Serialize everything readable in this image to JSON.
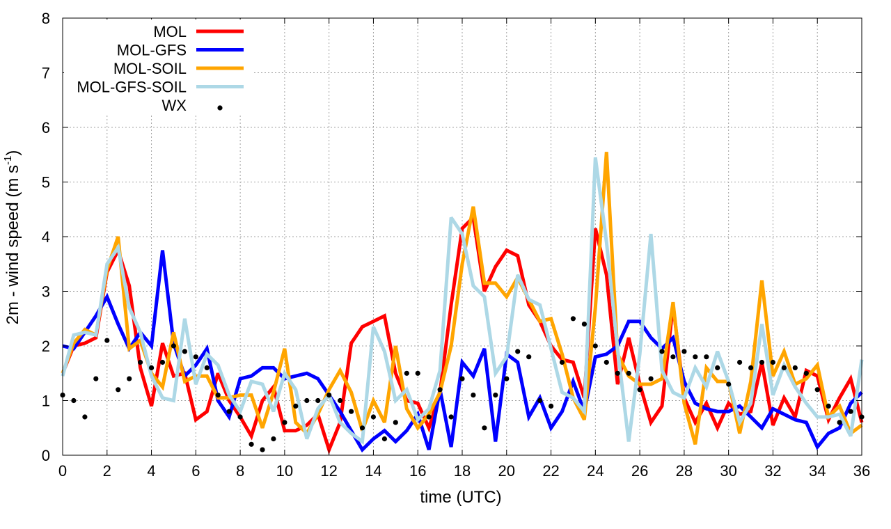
{
  "chart_data": {
    "type": "line",
    "title": "",
    "xlabel": "time (UTC)",
    "ylabel_main": "2m - wind speed  (m s",
    "ylabel_sup": "-1",
    "ylabel_close": ")",
    "xlim": [
      0,
      36
    ],
    "ylim": [
      0,
      8
    ],
    "grid": true,
    "legend_position": "top-left",
    "xticks": [
      "0",
      "2",
      "4",
      "6",
      "8",
      "10",
      "12",
      "14",
      "16",
      "18",
      "20",
      "22",
      "24",
      "26",
      "28",
      "30",
      "32",
      "34",
      "36"
    ],
    "yticks": [
      "0",
      "1",
      "2",
      "3",
      "4",
      "5",
      "6",
      "7",
      "8"
    ],
    "x": [
      0,
      0.5,
      1,
      1.5,
      2,
      2.5,
      3,
      3.5,
      4,
      4.5,
      5,
      5.5,
      6,
      6.5,
      7,
      7.5,
      8,
      8.5,
      9,
      9.5,
      10,
      10.5,
      11,
      11.5,
      12,
      12.5,
      13,
      13.5,
      14,
      14.5,
      15,
      15.5,
      16,
      16.5,
      17,
      17.5,
      18,
      18.5,
      19,
      19.5,
      20,
      20.5,
      21,
      21.5,
      22,
      22.5,
      23,
      23.5,
      24,
      24.5,
      25,
      25.5,
      26,
      26.5,
      27,
      27.5,
      28,
      28.5,
      29,
      29.5,
      30,
      30.5,
      31,
      31.5,
      32,
      32.5,
      33,
      33.5,
      34,
      34.5,
      35,
      35.5,
      36
    ],
    "series": [
      {
        "name": "MOL",
        "color": "#ff0000",
        "kind": "line",
        "values": [
          1.5,
          2.0,
          2.05,
          2.15,
          3.35,
          3.75,
          3.1,
          1.6,
          0.9,
          2.05,
          1.45,
          1.5,
          0.65,
          0.8,
          1.5,
          1.0,
          0.7,
          0.35,
          1.0,
          1.25,
          0.45,
          0.45,
          0.55,
          0.75,
          0.1,
          0.6,
          2.05,
          2.35,
          2.45,
          2.55,
          1.5,
          1.0,
          0.95,
          0.5,
          1.15,
          2.75,
          4.15,
          4.35,
          3.0,
          3.45,
          3.75,
          3.65,
          2.75,
          2.45,
          2.0,
          1.75,
          1.7,
          1.05,
          4.15,
          3.3,
          1.3,
          2.15,
          1.3,
          0.6,
          0.9,
          2.75,
          1.05,
          0.6,
          0.95,
          0.5,
          0.95,
          0.75,
          0.8,
          1.7,
          0.55,
          1.05,
          0.7,
          1.55,
          1.45,
          0.65,
          1.05,
          1.4,
          0.6
        ]
      },
      {
        "name": "MOL-GFS",
        "color": "#0000ff",
        "kind": "line",
        "values": [
          2.0,
          1.95,
          2.25,
          2.55,
          2.9,
          2.4,
          1.95,
          2.25,
          2.0,
          3.75,
          2.05,
          1.45,
          1.65,
          1.95,
          1.0,
          0.7,
          1.4,
          1.45,
          1.6,
          1.6,
          1.4,
          1.45,
          1.5,
          1.4,
          1.1,
          0.8,
          0.45,
          0.1,
          0.3,
          0.45,
          0.25,
          0.45,
          0.75,
          0.1,
          1.2,
          0.15,
          1.7,
          1.45,
          1.95,
          0.25,
          1.85,
          1.7,
          0.7,
          1.05,
          0.5,
          0.8,
          1.35,
          0.8,
          1.8,
          1.85,
          2.0,
          2.45,
          2.45,
          2.15,
          1.95,
          2.15,
          1.35,
          0.95,
          0.85,
          0.8,
          0.8,
          0.9,
          0.7,
          0.5,
          0.85,
          0.75,
          0.65,
          0.6,
          0.15,
          0.4,
          0.5,
          0.95,
          1.15
        ]
      },
      {
        "name": "MOL-SOIL",
        "color": "#ffa500",
        "kind": "line",
        "values": [
          1.5,
          2.05,
          2.3,
          2.2,
          3.4,
          4.0,
          1.95,
          2.1,
          1.5,
          1.25,
          2.25,
          1.35,
          1.45,
          1.45,
          1.05,
          1.05,
          1.1,
          1.1,
          0.5,
          1.15,
          1.95,
          0.6,
          0.4,
          0.75,
          1.2,
          1.55,
          1.15,
          0.45,
          1.0,
          0.6,
          2.0,
          0.85,
          0.5,
          0.75,
          1.15,
          2.0,
          3.5,
          4.55,
          3.15,
          3.15,
          2.9,
          3.25,
          2.85,
          2.45,
          2.5,
          1.85,
          1.05,
          0.65,
          2.7,
          5.55,
          1.85,
          1.45,
          1.3,
          1.3,
          1.4,
          2.8,
          0.95,
          0.2,
          1.6,
          1.35,
          1.35,
          0.4,
          1.35,
          3.2,
          1.45,
          1.9,
          1.3,
          1.4,
          1.65,
          0.7,
          0.9,
          0.4,
          0.55
        ]
      },
      {
        "name": "MOL-GFS-SOIL",
        "color": "#add8e6",
        "kind": "line",
        "values": [
          1.45,
          2.2,
          2.25,
          2.2,
          3.5,
          3.8,
          2.7,
          2.25,
          1.45,
          1.05,
          1.0,
          2.5,
          1.3,
          1.85,
          1.65,
          1.1,
          0.8,
          1.35,
          1.3,
          0.8,
          1.5,
          1.2,
          0.3,
          0.85,
          1.1,
          0.6,
          0.4,
          0.25,
          2.35,
          1.9,
          1.0,
          1.2,
          0.65,
          0.85,
          1.55,
          4.35,
          4.05,
          3.1,
          2.9,
          1.5,
          1.8,
          3.3,
          2.85,
          2.75,
          1.95,
          1.15,
          1.05,
          0.8,
          5.45,
          3.9,
          1.95,
          0.25,
          1.85,
          4.05,
          1.55,
          1.15,
          1.05,
          1.6,
          1.25,
          1.9,
          1.35,
          0.6,
          0.95,
          2.4,
          1.1,
          1.65,
          1.25,
          0.95,
          0.7,
          0.7,
          0.75,
          0.35,
          1.75
        ]
      },
      {
        "name": "WX",
        "color": "#000000",
        "kind": "points",
        "values": [
          1.1,
          1.0,
          0.7,
          1.4,
          2.1,
          1.2,
          1.4,
          1.7,
          1.6,
          1.7,
          2.0,
          1.9,
          1.8,
          1.6,
          1.1,
          0.8,
          0.7,
          0.2,
          0.1,
          0.3,
          0.6,
          0.9,
          1.0,
          1.0,
          1.1,
          1.0,
          0.8,
          0.5,
          0.7,
          0.3,
          0.6,
          1.5,
          1.5,
          0.7,
          1.2,
          0.7,
          1.4,
          1.1,
          0.5,
          1.1,
          1.4,
          1.9,
          1.8,
          1.0,
          0.9,
          1.7,
          2.5,
          2.4,
          2.0,
          1.7,
          1.5,
          1.5,
          1.2,
          1.4,
          1.9,
          1.8,
          1.9,
          1.8,
          1.8,
          1.6,
          1.3,
          1.7,
          1.6,
          1.7,
          1.7,
          1.6,
          1.6,
          1.5,
          1.2,
          0.9,
          0.6,
          0.8,
          0.7
        ]
      }
    ]
  }
}
